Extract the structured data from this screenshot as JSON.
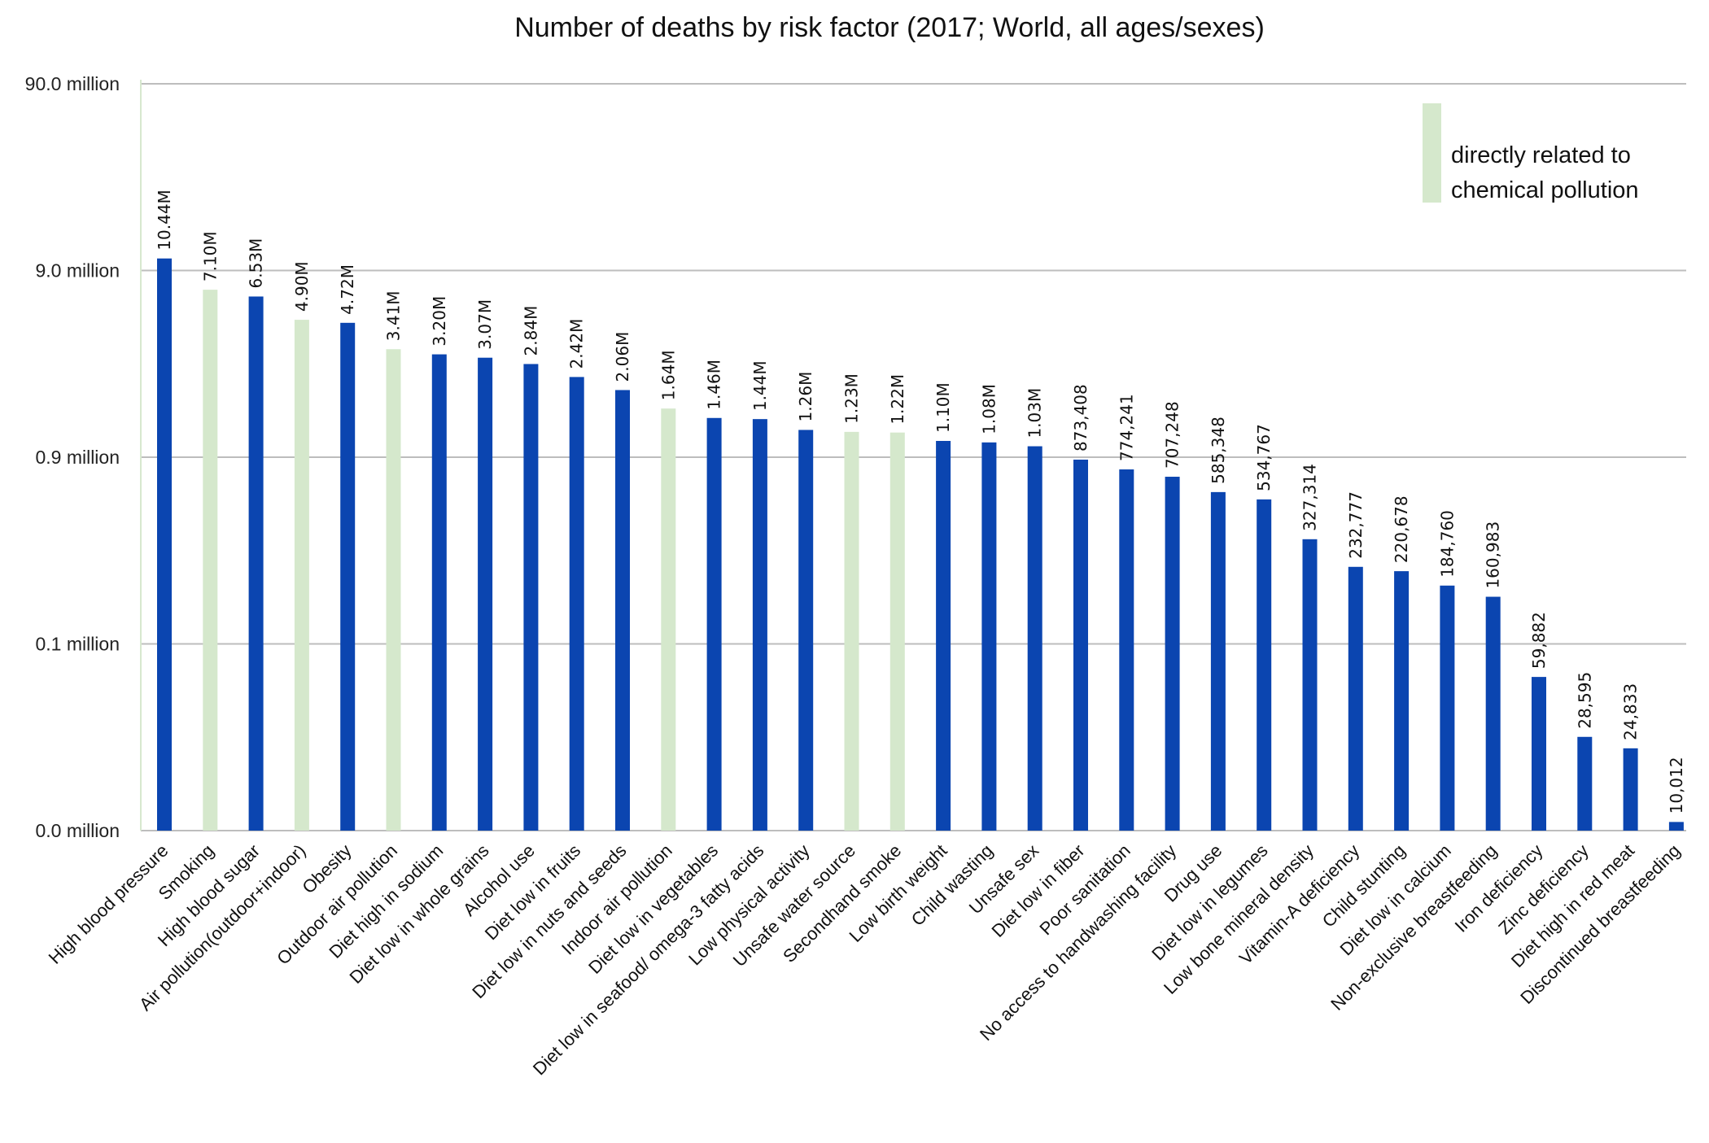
{
  "chart_data": {
    "type": "bar",
    "title": "Number of deaths by risk factor (2017; World, all ages/sexes)",
    "xlabel": "",
    "ylabel": "",
    "yscale": "log",
    "ylim": [
      9000,
      90000000
    ],
    "grid": true,
    "yticks": [
      {
        "value": 90000000,
        "label": "90.0 million"
      },
      {
        "value": 9000000,
        "label": "9.0 million"
      },
      {
        "value": 900000,
        "label": "0.9 million"
      },
      {
        "value": 90000,
        "label": "0.1 million"
      },
      {
        "value": 9000,
        "label": "0.0 million"
      }
    ],
    "colors": {
      "default": "#0b45b0",
      "highlight": "#d5e8cc"
    },
    "legend": {
      "position": "top-right",
      "entries": [
        {
          "label_lines": [
            "directly related to",
            "chemical pollution"
          ],
          "color": "#d5e8cc"
        }
      ]
    },
    "categories": [
      "High blood pressure",
      "Smoking",
      "High blood sugar",
      "Air pollution(outdoor+indoor)",
      "Obesity",
      "Outdoor air pollution",
      "Diet high in sodium",
      "Diet low in whole grains",
      "Alcohol use",
      "Diet low in fruits",
      "Diet low in nuts and seeds",
      "Indoor air pollution",
      "Diet low in vegetables",
      "Diet low in seafood/ omega-3 fatty acids",
      "Low physical activity",
      "Unsafe water source",
      "Secondhand smoke",
      "Low birth weight",
      "Child wasting",
      "Unsafe sex",
      "Diet low in fiber",
      "Poor sanitation",
      "No access to handwashing facility",
      "Drug use",
      "Diet low in legumes",
      "Low bone mineral density",
      "Vitamin-A deficiency",
      "Child stunting",
      "Diet low in calcium",
      "Non-exclusive breastfeeding",
      "Iron deficiency",
      "Zinc deficiency",
      "Diet high in red meat",
      "Discontinued breastfeeding"
    ],
    "values": [
      10440000,
      7100000,
      6530000,
      4900000,
      4720000,
      3410000,
      3200000,
      3070000,
      2840000,
      2420000,
      2060000,
      1640000,
      1460000,
      1440000,
      1260000,
      1230000,
      1220000,
      1100000,
      1080000,
      1030000,
      873408,
      774241,
      707248,
      585348,
      534767,
      327314,
      232777,
      220678,
      184760,
      160983,
      59882,
      28595,
      24833,
      10012
    ],
    "data_labels": [
      "10.44M",
      "7.10M",
      "6.53M",
      "4.90M",
      "4.72M",
      "3.41M",
      "3.20M",
      "3.07M",
      "2.84M",
      "2.42M",
      "2.06M",
      "1.64M",
      "1.46M",
      "1.44M",
      "1.26M",
      "1.23M",
      "1.22M",
      "1.10M",
      "1.08M",
      "1.03M",
      "873,408",
      "774,241",
      "707,248",
      "585,348",
      "534,767",
      "327,314",
      "232,777",
      "220,678",
      "184,760",
      "160,983",
      "59,882",
      "28,595",
      "24,833",
      "10,012"
    ],
    "chemical_pollution_related": [
      false,
      true,
      false,
      true,
      false,
      true,
      false,
      false,
      false,
      false,
      false,
      true,
      false,
      false,
      false,
      true,
      true,
      false,
      false,
      false,
      false,
      false,
      false,
      false,
      false,
      false,
      false,
      false,
      false,
      false,
      false,
      false,
      false,
      false
    ]
  }
}
